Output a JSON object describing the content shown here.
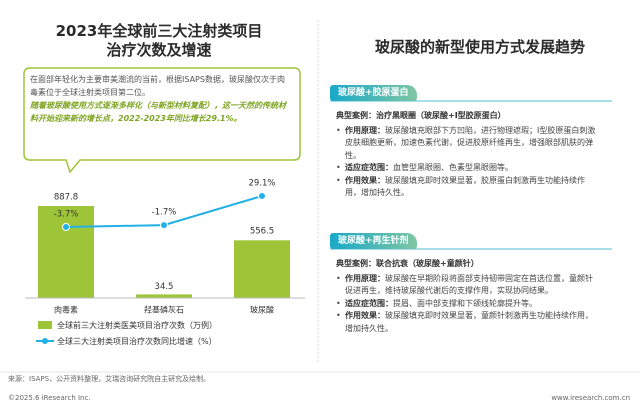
{
  "left_title": [
    "2023年全球前三大注射类项目",
    "治疗次数及增速"
  ],
  "callout": {
    "text": "在面部年轻化为主要审美潮流的当前，根据ISAPS数据，玻尿酸仅次于肉毒素位于全球注射类项目第二位。",
    "highlight": "随着玻尿酸使用方式逐渐多样化（与新型材料复配），这一天然的传统材料开始迎来新的增长点，2022-2023年同比增长29.1%。"
  },
  "chart_data": {
    "type": "bar",
    "categories": [
      "肉毒素",
      "羟基磷灰石",
      "玻尿酸"
    ],
    "series": [
      {
        "name": "全球前三大注射类医美项目治疗次数（万例）",
        "color": "#9ec537",
        "values": [
          887.8,
          34.5,
          556.5
        ]
      },
      {
        "name": "全球三大注射类项目治疗次数同比增速（%）",
        "color": "#22b1e6",
        "type": "line",
        "axis": "y2",
        "values": [
          -3.7,
          -1.7,
          29.1
        ],
        "value_labels": [
          "-3.7%",
          "-1.7%",
          "29.1%"
        ]
      }
    ]
  },
  "right": {
    "title": "玻尿酸的新型使用方式发展趋势",
    "sections": [
      {
        "tag": "玻尿酸+胶原蛋白",
        "case": "典型案例：治疗黑眼圈（玻尿酸+I型胶原蛋白）",
        "bullets": [
          {
            "label": "作用原理：",
            "text": "玻尿酸填充眼部下方凹陷，进行物理遮瑕；I型胶原蛋白刺激皮肤细胞更新，加速色素代谢，促进胶原纤维再生，增强眼部肌肤的弹性。"
          },
          {
            "label": "适应症范围：",
            "text": "血管型黑眼圈、色素型黑眼圈等。"
          },
          {
            "label": "作用效果：",
            "text": "玻尿酸填充即时效果显著，胶原蛋白刺激再生功能持续作用，增加持久性。"
          }
        ]
      },
      {
        "tag": "玻尿酸+再生针剂",
        "case": "典型案例：联合抗衰（玻尿酸+童颜针）",
        "bullets": [
          {
            "label": "作用原理：",
            "text": "玻尿酸在早期阶段将面部支持韧带固定在首选位置，童颜针促进再生，维持玻尿酸代谢后的支撑作用，实现协同结果。"
          },
          {
            "label": "适应症范围：",
            "text": "提眉、面中部支撑和下颌线轮廓提升等。"
          },
          {
            "label": "作用效果：",
            "text": "玻尿酸填充即时效果显著，童颜针刺激再生功能持续作用，增加持久性。"
          }
        ]
      }
    ]
  },
  "footer": {
    "source": "来源：ISAPS，公开资料整理，艾瑞咨询研究院自主研究及绘制。",
    "copyright": "©2025.6 iResearch Inc.",
    "website": "www.iresearch.com.cn"
  }
}
